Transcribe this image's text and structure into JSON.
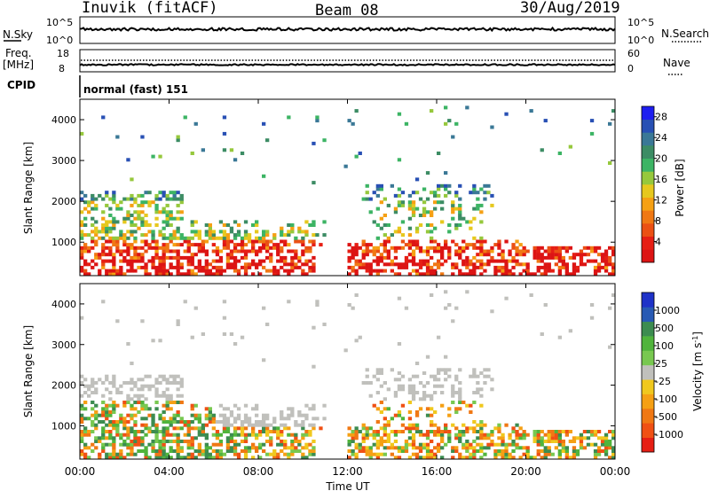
{
  "header": {
    "title": "Inuvik (fitACF)",
    "beam": "Beam 08",
    "date": "30/Aug/2019"
  },
  "top_panels": {
    "nsky_label": "N.Sky",
    "nsky_ticks": [
      "10^5",
      "10^0"
    ],
    "nsearch_label": "N.Search",
    "nsearch_ticks": [
      "10^5",
      "10^0"
    ],
    "freq_label": "Freq.",
    "freq_unit": "[MHz]",
    "freq_ticks": [
      "18",
      "8"
    ],
    "nave_label": "Nave",
    "nave_ticks": [
      "60",
      "0"
    ],
    "cpid_label": "CPID",
    "cpid_value": "normal (fast) 151"
  },
  "chart_data": [
    {
      "type": "heatmap",
      "title": "",
      "xlabel": "Time UT",
      "ylabel": "Slant Range [km]",
      "x_ticks": [
        "00:00",
        "04:00",
        "08:00",
        "12:00",
        "16:00",
        "20:00",
        "00:00"
      ],
      "xlim_hours": [
        0,
        24
      ],
      "ylim": [
        180,
        4500
      ],
      "y_ticks": [
        1000,
        2000,
        3000,
        4000
      ],
      "colorbar": {
        "label": "Power [dB]",
        "ticks": [
          4,
          8,
          12,
          16,
          20,
          24,
          28
        ],
        "range": [
          0,
          30
        ],
        "colors": [
          "#1e1ef0",
          "#2850b4",
          "#3a7896",
          "#3c8c64",
          "#3cb464",
          "#96c83c",
          "#e6c81e",
          "#f5a014",
          "#f07814",
          "#eb5014",
          "#e61e14",
          "#dc1414"
        ]
      }
    },
    {
      "type": "heatmap",
      "title": "",
      "xlabel": "Time UT",
      "ylabel": "Slant Range [km]",
      "x_ticks": [
        "00:00",
        "04:00",
        "08:00",
        "12:00",
        "16:00",
        "20:00",
        "00:00"
      ],
      "xlim_hours": [
        0,
        24
      ],
      "ylim": [
        180,
        4500
      ],
      "y_ticks": [
        1000,
        2000,
        3000,
        4000
      ],
      "colorbar": {
        "label": "Velocity [m s^-1]",
        "ticks": [
          "1000",
          "500",
          "100",
          "25",
          "-25",
          "-100",
          "-500",
          "-1000"
        ],
        "colors": [
          "#1e32c8",
          "#285ab4",
          "#3c8c50",
          "#50b43c",
          "#78c850",
          "#c0c0bc",
          "#f0c81e",
          "#f5a014",
          "#f07814",
          "#f05014",
          "#e61e14"
        ]
      }
    }
  ]
}
